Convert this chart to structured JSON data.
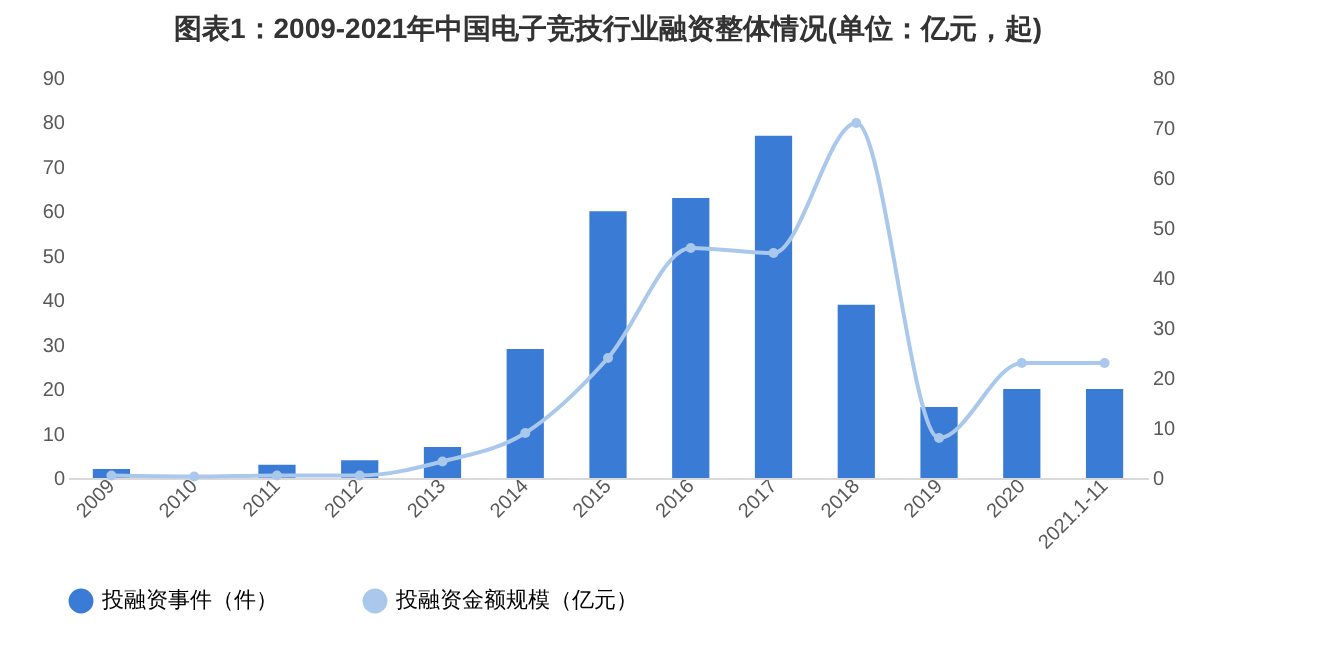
{
  "chart_data": {
    "type": "bar",
    "title": "图表1：2009-2021年中国电子竞技行业融资整体情况(单位：亿元，起)",
    "categories": [
      "2009",
      "2010",
      "2011",
      "2012",
      "2013",
      "2014",
      "2015",
      "2016",
      "2017",
      "2018",
      "2019",
      "2020",
      "2021.1-11"
    ],
    "series": [
      {
        "name": "投融资事件（件）",
        "color": "#3a7bd5",
        "values": [
          2,
          0,
          3,
          4,
          7,
          29,
          60,
          63,
          77,
          39,
          16,
          20,
          20
        ]
      },
      {
        "name": "投融资金额规模（亿元）",
        "type": "line",
        "axis": "y2",
        "color": "#a9c8ec",
        "values": [
          0.5,
          0.3,
          0.5,
          0.5,
          3.3,
          9,
          24,
          46,
          45,
          71,
          8,
          23,
          23
        ]
      }
    ],
    "ylim": [
      0,
      90
    ],
    "yticks": [
      0,
      10,
      20,
      30,
      40,
      50,
      60,
      70,
      80,
      90
    ],
    "y2lim": [
      0,
      80
    ],
    "y2ticks": [
      0,
      10,
      20,
      30,
      40,
      50,
      60,
      70,
      80
    ],
    "legend": "bottom",
    "marker": "circle"
  }
}
